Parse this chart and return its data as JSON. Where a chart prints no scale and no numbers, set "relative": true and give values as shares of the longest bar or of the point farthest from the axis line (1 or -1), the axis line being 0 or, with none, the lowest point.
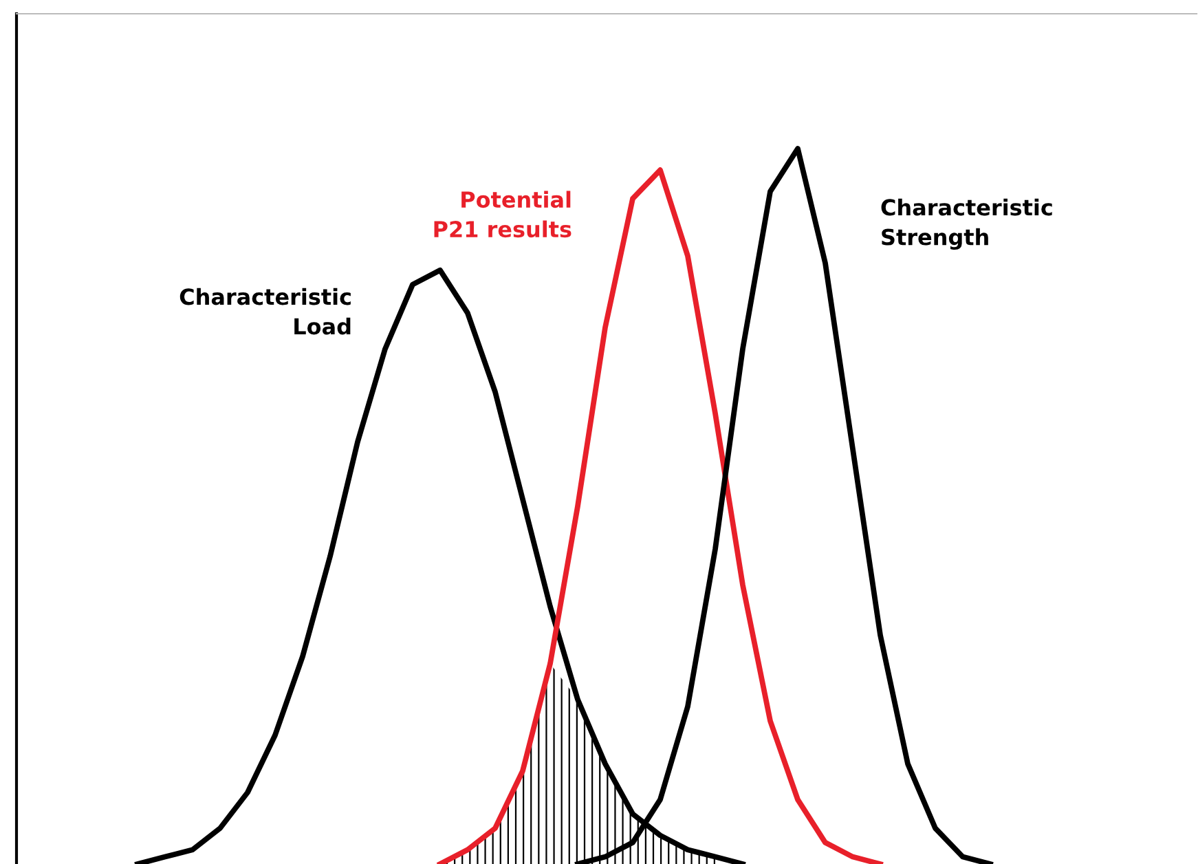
{
  "chart_data": {
    "type": "line",
    "relative": true,
    "grid": false,
    "legend": false,
    "marker": "none",
    "line_style": "solid",
    "categories": [
      null,
      null,
      null,
      null,
      null,
      null,
      null,
      null,
      null,
      null,
      null,
      null,
      null,
      null,
      null,
      null,
      null,
      null,
      null,
      null,
      null,
      null,
      null,
      null,
      null,
      null,
      null,
      null,
      null,
      null,
      null,
      null,
      null,
      null,
      null,
      null,
      null,
      null,
      null,
      null,
      null,
      null,
      null
    ],
    "series": [
      {
        "name": "Characteristic\nLoad",
        "color": "#000000",
        "values": [
          null,
          null,
          null,
          null,
          0,
          0.01,
          0.02,
          0.05,
          0.1,
          0.18,
          0.29,
          0.43,
          0.59,
          0.72,
          0.81,
          0.83,
          0.77,
          0.66,
          0.51,
          0.36,
          0.23,
          0.14,
          0.07,
          0.04,
          0.02,
          0.01,
          0,
          null,
          null,
          null,
          null,
          null,
          null,
          null,
          null,
          null,
          null,
          null,
          null,
          null,
          null,
          null,
          null
        ]
      },
      {
        "name": "Potential\nP21 results",
        "color": "#e8202a",
        "values": [
          null,
          null,
          null,
          null,
          null,
          null,
          null,
          null,
          null,
          null,
          null,
          null,
          null,
          null,
          null,
          0,
          0.02,
          0.05,
          0.13,
          0.28,
          0.5,
          0.75,
          0.93,
          0.97,
          0.85,
          0.63,
          0.39,
          0.2,
          0.09,
          0.03,
          0.01,
          0,
          null,
          null,
          null,
          null,
          null,
          null,
          null,
          null,
          null,
          null,
          null
        ]
      },
      {
        "name": "Characteristic\nStrength",
        "color": "#000000",
        "values": [
          null,
          null,
          null,
          null,
          null,
          null,
          null,
          null,
          null,
          null,
          null,
          null,
          null,
          null,
          null,
          null,
          null,
          null,
          null,
          null,
          0,
          0.01,
          0.03,
          0.09,
          0.22,
          0.44,
          0.72,
          0.94,
          1,
          0.84,
          0.58,
          0.32,
          0.14,
          0.05,
          0.01,
          0,
          null,
          null,
          null,
          null,
          null,
          null,
          null
        ]
      },
      {
        "type": "area",
        "color": "#000000",
        "values": [
          null,
          null,
          null,
          null,
          null,
          null,
          null,
          null,
          null,
          null,
          null,
          null,
          null,
          null,
          null,
          0,
          0.02,
          0.05,
          0.13,
          0.28,
          0.23,
          0.14,
          0.07,
          0.04,
          0.02,
          0.01,
          null,
          null,
          null,
          null,
          null,
          null,
          null,
          null,
          null,
          null,
          null,
          null,
          null,
          null,
          null,
          null,
          null
        ]
      }
    ]
  }
}
